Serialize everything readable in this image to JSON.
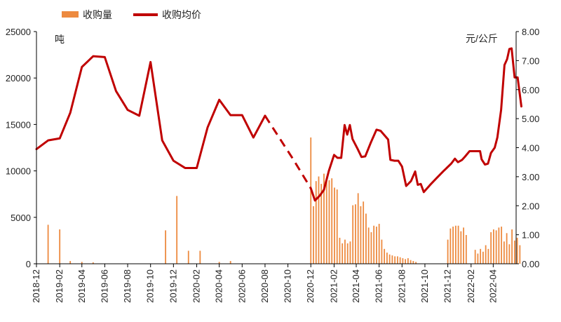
{
  "chart_data": {
    "type": "bar+line",
    "legend": {
      "position": "top-left",
      "items": [
        {
          "label": "收购量",
          "kind": "bar",
          "color": "#ED8A3F"
        },
        {
          "label": "收购均价",
          "kind": "line",
          "color": "#C00000"
        }
      ]
    },
    "left_axis": {
      "unit": "吨",
      "ylim": [
        0,
        25000
      ],
      "ticks": [
        "0",
        "5000",
        "10000",
        "15000",
        "20000",
        "25000"
      ]
    },
    "right_axis": {
      "unit": "元/公斤",
      "ylim": [
        0,
        8
      ],
      "ticks": [
        "0.00",
        "1.00",
        "2.00",
        "3.00",
        "4.00",
        "5.00",
        "6.00",
        "7.00",
        "8.00"
      ]
    },
    "x_axis": {
      "start": "2018-12",
      "end": "2022-06",
      "ticks": [
        "2018-12",
        "2019-02",
        "2019-04",
        "2019-06",
        "2019-08",
        "2019-10",
        "2019-12",
        "2020-02",
        "2020-04",
        "2020-06",
        "2020-08",
        "2020-10",
        "2020-12",
        "2021-02",
        "2021-04",
        "2021-06",
        "2021-08",
        "2021-10",
        "2021-12",
        "2022-02",
        "2022-04"
      ]
    },
    "series": [
      {
        "name": "收购量",
        "type": "bar",
        "axis": "left",
        "color": "#ED8A3F",
        "points": [
          [
            "2019-01-01",
            4200
          ],
          [
            "2019-02-01",
            3700
          ],
          [
            "2019-03-01",
            300
          ],
          [
            "2019-04-01",
            200
          ],
          [
            "2019-05-01",
            150
          ],
          [
            "2019-11-10",
            3600
          ],
          [
            "2019-12-10",
            7300
          ],
          [
            "2020-01-10",
            1400
          ],
          [
            "2020-02-10",
            1400
          ],
          [
            "2020-04-01",
            200
          ],
          [
            "2020-05-01",
            300
          ],
          [
            "2020-12-01",
            13600
          ],
          [
            "2020-12-08",
            6200
          ],
          [
            "2020-12-15",
            8900
          ],
          [
            "2020-12-22",
            9400
          ],
          [
            "2020-12-29",
            8600
          ],
          [
            "2021-01-05",
            9700
          ],
          [
            "2021-01-12",
            8900
          ],
          [
            "2021-01-19",
            9000
          ],
          [
            "2021-01-26",
            9200
          ],
          [
            "2021-02-02",
            8200
          ],
          [
            "2021-02-09",
            8000
          ],
          [
            "2021-02-16",
            2800
          ],
          [
            "2021-02-23",
            2200
          ],
          [
            "2021-03-02",
            2600
          ],
          [
            "2021-03-09",
            2200
          ],
          [
            "2021-03-16",
            2400
          ],
          [
            "2021-03-23",
            6300
          ],
          [
            "2021-03-30",
            6400
          ],
          [
            "2021-04-06",
            7600
          ],
          [
            "2021-04-13",
            6200
          ],
          [
            "2021-04-20",
            6700
          ],
          [
            "2021-04-27",
            5400
          ],
          [
            "2021-05-04",
            3900
          ],
          [
            "2021-05-11",
            3400
          ],
          [
            "2021-05-18",
            4100
          ],
          [
            "2021-05-25",
            4000
          ],
          [
            "2021-06-01",
            4300
          ],
          [
            "2021-06-08",
            2600
          ],
          [
            "2021-06-15",
            1600
          ],
          [
            "2021-06-22",
            1200
          ],
          [
            "2021-06-29",
            1000
          ],
          [
            "2021-07-06",
            900
          ],
          [
            "2021-07-13",
            800
          ],
          [
            "2021-07-20",
            800
          ],
          [
            "2021-07-27",
            700
          ],
          [
            "2021-08-03",
            600
          ],
          [
            "2021-08-10",
            500
          ],
          [
            "2021-08-17",
            600
          ],
          [
            "2021-08-24",
            400
          ],
          [
            "2021-08-31",
            300
          ],
          [
            "2021-09-07",
            200
          ],
          [
            "2021-12-01",
            2600
          ],
          [
            "2021-12-08",
            3800
          ],
          [
            "2021-12-15",
            4000
          ],
          [
            "2021-12-22",
            4100
          ],
          [
            "2021-12-29",
            4100
          ],
          [
            "2022-01-05",
            3500
          ],
          [
            "2022-01-12",
            3900
          ],
          [
            "2022-01-19",
            3100
          ],
          [
            "2022-02-12",
            1500
          ],
          [
            "2022-02-19",
            1100
          ],
          [
            "2022-02-26",
            1600
          ],
          [
            "2022-03-05",
            1300
          ],
          [
            "2022-03-12",
            2000
          ],
          [
            "2022-03-19",
            1600
          ],
          [
            "2022-03-26",
            3400
          ],
          [
            "2022-04-02",
            3700
          ],
          [
            "2022-04-09",
            3600
          ],
          [
            "2022-04-16",
            3900
          ],
          [
            "2022-04-23",
            4000
          ],
          [
            "2022-04-30",
            2400
          ],
          [
            "2022-05-07",
            3300
          ],
          [
            "2022-05-14",
            2100
          ],
          [
            "2022-05-21",
            3700
          ],
          [
            "2022-05-28",
            2500
          ],
          [
            "2022-06-04",
            2800
          ],
          [
            "2022-06-11",
            2000
          ]
        ]
      },
      {
        "name": "收购均价",
        "type": "line",
        "axis": "right",
        "color": "#C00000",
        "segments": [
          {
            "style": "solid",
            "points": [
              [
                "2018-12-01",
                3.95
              ],
              [
                "2019-01-01",
                4.25
              ],
              [
                "2019-02-01",
                4.32
              ],
              [
                "2019-03-01",
                5.2
              ],
              [
                "2019-04-01",
                6.78
              ],
              [
                "2019-05-01",
                7.15
              ],
              [
                "2019-06-01",
                7.12
              ],
              [
                "2019-07-01",
                5.95
              ],
              [
                "2019-08-01",
                5.3
              ],
              [
                "2019-09-01",
                5.1
              ],
              [
                "2019-10-01",
                6.95
              ],
              [
                "2019-11-01",
                4.25
              ],
              [
                "2019-12-01",
                3.55
              ],
              [
                "2020-01-01",
                3.3
              ],
              [
                "2020-02-01",
                3.3
              ],
              [
                "2020-03-01",
                4.7
              ],
              [
                "2020-04-01",
                5.65
              ],
              [
                "2020-05-01",
                5.12
              ],
              [
                "2020-06-01",
                5.12
              ],
              [
                "2020-07-01",
                4.35
              ],
              [
                "2020-08-01",
                5.1
              ]
            ]
          },
          {
            "style": "dashed",
            "points": [
              [
                "2020-08-01",
                5.1
              ],
              [
                "2020-10-15",
                3.6
              ],
              [
                "2020-12-01",
                2.6
              ]
            ]
          },
          {
            "style": "solid",
            "points": [
              [
                "2020-12-01",
                2.6
              ],
              [
                "2020-12-12",
                2.18
              ],
              [
                "2020-12-25",
                2.35
              ],
              [
                "2021-01-05",
                2.55
              ],
              [
                "2021-01-18",
                3.2
              ],
              [
                "2021-02-01",
                3.75
              ],
              [
                "2021-02-10",
                3.65
              ],
              [
                "2021-02-20",
                3.65
              ],
              [
                "2021-03-01",
                4.78
              ],
              [
                "2021-03-08",
                4.45
              ],
              [
                "2021-03-15",
                4.78
              ],
              [
                "2021-03-22",
                4.3
              ],
              [
                "2021-04-05",
                3.95
              ],
              [
                "2021-04-15",
                3.68
              ],
              [
                "2021-04-25",
                3.7
              ],
              [
                "2021-05-10",
                4.18
              ],
              [
                "2021-05-25",
                4.62
              ],
              [
                "2021-06-05",
                4.58
              ],
              [
                "2021-06-25",
                4.28
              ],
              [
                "2021-07-01",
                3.58
              ],
              [
                "2021-07-12",
                3.55
              ],
              [
                "2021-07-22",
                3.55
              ],
              [
                "2021-08-01",
                3.35
              ],
              [
                "2021-08-12",
                2.68
              ],
              [
                "2021-08-25",
                2.85
              ],
              [
                "2021-09-05",
                3.18
              ],
              [
                "2021-09-12",
                2.72
              ],
              [
                "2021-09-20",
                2.75
              ],
              [
                "2021-09-28",
                2.47
              ],
              [
                "2021-10-15",
                2.72
              ],
              [
                "2021-11-01",
                2.95
              ],
              [
                "2021-11-20",
                3.2
              ],
              [
                "2021-12-10",
                3.45
              ],
              [
                "2021-12-20",
                3.62
              ],
              [
                "2021-12-28",
                3.5
              ],
              [
                "2022-01-08",
                3.58
              ],
              [
                "2022-01-15",
                3.68
              ],
              [
                "2022-01-28",
                3.88
              ],
              [
                "2022-02-10",
                3.88
              ],
              [
                "2022-02-25",
                3.88
              ],
              [
                "2022-03-01",
                3.6
              ],
              [
                "2022-03-10",
                3.42
              ],
              [
                "2022-03-18",
                3.45
              ],
              [
                "2022-03-26",
                3.82
              ],
              [
                "2022-04-05",
                4.0
              ],
              [
                "2022-04-12",
                4.35
              ],
              [
                "2022-04-22",
                5.3
              ],
              [
                "2022-05-01",
                6.85
              ],
              [
                "2022-05-08",
                7.05
              ],
              [
                "2022-05-14",
                7.4
              ],
              [
                "2022-05-20",
                7.42
              ],
              [
                "2022-05-28",
                6.42
              ],
              [
                "2022-06-05",
                6.42
              ],
              [
                "2022-06-15",
                5.42
              ]
            ]
          }
        ]
      }
    ]
  }
}
